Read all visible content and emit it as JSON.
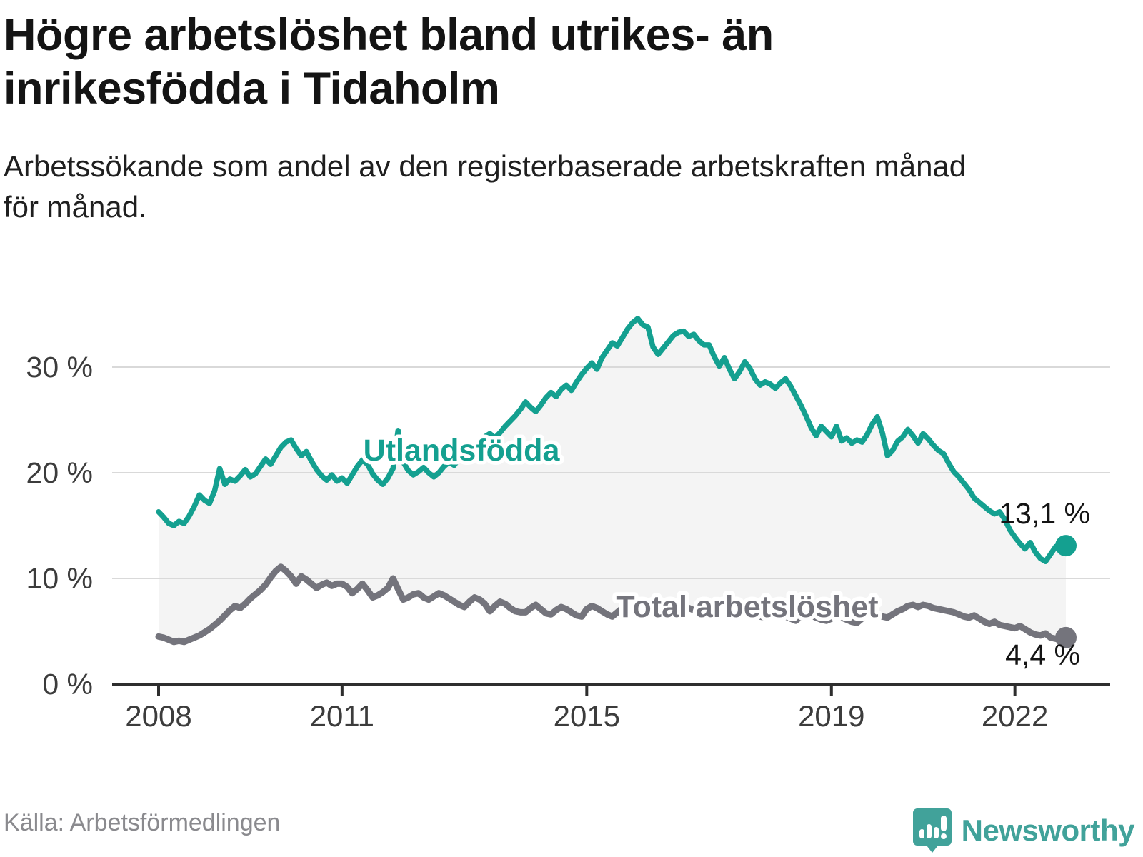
{
  "title": {
    "lines": [
      "Högre arbetslöshet bland utrikes- än",
      "inrikesfödda i Tidaholm"
    ],
    "full": "Högre arbetslöshet bland utrikes- än inrikesfödda i Tidaholm"
  },
  "subtitle": {
    "lines": [
      "Arbetssökande som andel av den registerbaserade arbetskraften månad",
      "för månad."
    ],
    "full": "Arbetssökande som andel av den registerbaserade arbetskraften månad för månad."
  },
  "source": "Källa: Arbetsförmedlingen",
  "logo": {
    "text": "Newsworthy",
    "color": "#41a29a"
  },
  "colors": {
    "teal": "#14a090",
    "gray": "#74747c",
    "band_fill": "#f4f4f4",
    "gridline": "#d9d9d9",
    "axis": "#2e2e2e",
    "tick_label": "#3c3c3c",
    "end_label": "#141414",
    "source_gray": "#8a8a8e"
  },
  "chart_data": {
    "type": "line",
    "unit": "%",
    "x_start": "2008-01",
    "x_end": "2022-11",
    "x_interval": "monthly",
    "ylim": [
      0,
      36
    ],
    "grid": "horizontal",
    "y_ticks": [
      {
        "value": 0,
        "label": "0 %"
      },
      {
        "value": 10,
        "label": "10 %"
      },
      {
        "value": 20,
        "label": "20 %"
      },
      {
        "value": 30,
        "label": "30 %"
      }
    ],
    "y_gridlines": [
      10,
      20,
      30
    ],
    "x_ticks": [
      {
        "year": 2008,
        "label": "2008"
      },
      {
        "year": 2011,
        "label": "2011"
      },
      {
        "year": 2015,
        "label": "2015"
      },
      {
        "year": 2019,
        "label": "2019"
      },
      {
        "year": 2022,
        "label": "2022"
      }
    ],
    "series": [
      {
        "name": "Utlandsfödda",
        "color": "#14a090",
        "end_label": "13,1 %",
        "last_value": 13.1,
        "values": [
          16.3,
          15.8,
          15.2,
          15.0,
          15.4,
          15.2,
          15.9,
          16.8,
          17.9,
          17.4,
          17.1,
          18.3,
          20.4,
          18.9,
          19.4,
          19.2,
          19.7,
          20.3,
          19.6,
          19.9,
          20.6,
          21.3,
          20.8,
          21.6,
          22.4,
          22.9,
          23.1,
          22.3,
          21.6,
          22.0,
          21.1,
          20.3,
          19.7,
          19.3,
          19.8,
          19.2,
          19.5,
          19.0,
          19.8,
          20.6,
          21.2,
          20.8,
          19.9,
          19.3,
          18.9,
          19.5,
          20.4,
          24.0,
          21.0,
          20.2,
          19.8,
          20.1,
          20.5,
          20.0,
          19.6,
          20.0,
          20.6,
          21.0,
          20.7,
          21.4,
          21.2,
          21.6,
          22.3,
          22.9,
          23.4,
          23.7,
          23.3,
          23.8,
          24.4,
          24.9,
          25.4,
          26.0,
          26.7,
          26.2,
          25.8,
          26.4,
          27.1,
          27.6,
          27.2,
          27.9,
          28.3,
          27.8,
          28.6,
          29.3,
          29.9,
          30.4,
          29.8,
          30.9,
          31.6,
          32.3,
          32.0,
          32.8,
          33.6,
          34.2,
          34.6,
          34.0,
          33.8,
          31.9,
          31.2,
          31.8,
          32.4,
          33.0,
          33.3,
          33.4,
          32.9,
          33.1,
          32.5,
          32.1,
          32.1,
          31.0,
          30.1,
          30.9,
          29.8,
          28.9,
          29.6,
          30.5,
          29.9,
          28.9,
          28.3,
          28.6,
          28.4,
          28.0,
          28.5,
          28.9,
          28.2,
          27.3,
          26.4,
          25.4,
          24.3,
          23.5,
          24.4,
          23.9,
          23.4,
          24.4,
          23.0,
          23.3,
          22.8,
          23.1,
          22.9,
          23.6,
          24.6,
          25.3,
          23.8,
          21.6,
          22.1,
          23.0,
          23.4,
          24.1,
          23.5,
          22.8,
          23.7,
          23.2,
          22.6,
          22.1,
          21.8,
          20.9,
          20.1,
          19.6,
          19.0,
          18.4,
          17.6,
          17.2,
          16.8,
          16.4,
          16.1,
          16.3,
          15.6,
          14.6,
          13.9,
          13.3,
          12.8,
          13.4,
          12.5,
          11.9,
          11.6,
          12.3,
          13.0,
          12.8,
          13.1
        ]
      },
      {
        "name": "Total arbetslöshet",
        "color": "#74747c",
        "end_label": "4,4 %",
        "last_value": 4.4,
        "values": [
          4.5,
          4.4,
          4.2,
          4.0,
          4.1,
          4.0,
          4.2,
          4.4,
          4.6,
          4.9,
          5.2,
          5.6,
          6.0,
          6.5,
          7.0,
          7.4,
          7.2,
          7.6,
          8.1,
          8.5,
          8.9,
          9.4,
          10.1,
          10.7,
          11.1,
          10.7,
          10.2,
          9.5,
          10.2,
          9.9,
          9.5,
          9.1,
          9.4,
          9.6,
          9.3,
          9.5,
          9.5,
          9.2,
          8.6,
          9.0,
          9.5,
          8.9,
          8.2,
          8.4,
          8.7,
          9.1,
          10.0,
          9.0,
          8.0,
          8.2,
          8.5,
          8.6,
          8.2,
          8.0,
          8.3,
          8.6,
          8.4,
          8.1,
          7.8,
          7.5,
          7.3,
          7.8,
          8.2,
          8.0,
          7.6,
          6.9,
          7.4,
          7.8,
          7.6,
          7.2,
          6.9,
          6.8,
          6.8,
          7.2,
          7.5,
          7.1,
          6.7,
          6.6,
          7.0,
          7.3,
          7.1,
          6.8,
          6.5,
          6.4,
          7.1,
          7.4,
          7.2,
          6.9,
          6.6,
          6.4,
          6.8,
          7.2,
          7.5,
          7.3,
          7.0,
          6.9,
          7.2,
          7.5,
          7.3,
          7.0,
          6.8,
          6.6,
          7.0,
          7.4,
          7.2,
          7.0,
          6.8,
          6.7,
          6.9,
          7.2,
          7.0,
          6.8,
          6.5,
          6.3,
          6.7,
          7.1,
          6.9,
          6.6,
          6.4,
          6.3,
          6.5,
          6.8,
          6.6,
          6.4,
          6.2,
          6.0,
          6.4,
          6.7,
          6.5,
          6.3,
          6.1,
          6.0,
          6.2,
          6.5,
          6.3,
          6.1,
          5.9,
          5.8,
          6.2,
          6.6,
          6.8,
          6.6,
          6.4,
          6.3,
          6.6,
          6.9,
          7.1,
          7.4,
          7.5,
          7.3,
          7.5,
          7.4,
          7.2,
          7.1,
          7.0,
          6.9,
          6.8,
          6.6,
          6.4,
          6.3,
          6.5,
          6.2,
          5.9,
          5.7,
          5.9,
          5.6,
          5.5,
          5.4,
          5.3,
          5.5,
          5.2,
          4.9,
          4.7,
          4.6,
          4.8,
          4.4,
          4.3,
          4.2,
          4.4
        ]
      }
    ]
  }
}
